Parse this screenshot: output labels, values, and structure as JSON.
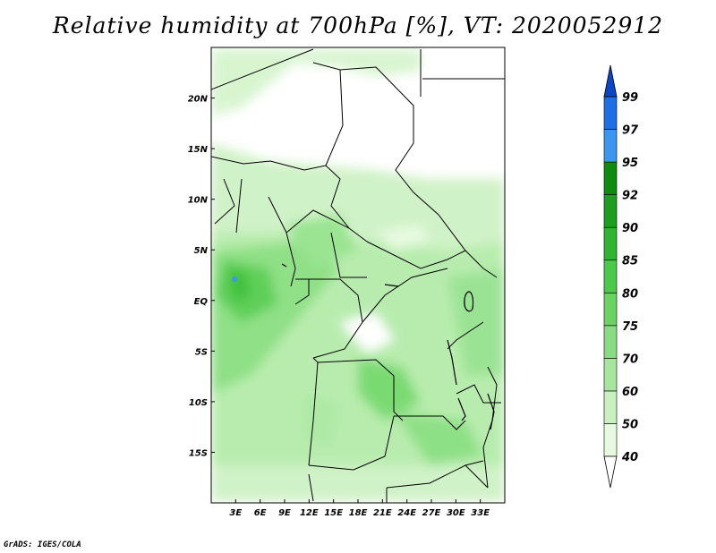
{
  "title": "Relative humidity at 700hPa [%], VT: 2020052912",
  "credit": "GrADS: IGES/COLA",
  "map": {
    "lon_range": [
      0,
      36
    ],
    "lat_range": [
      -20,
      25
    ],
    "lon_ticks": [
      "3E",
      "6E",
      "9E",
      "12E",
      "15E",
      "18E",
      "21E",
      "24E",
      "27E",
      "30E",
      "33E"
    ],
    "lat_ticks": [
      "20N",
      "15N",
      "10N",
      "5N",
      "EQ",
      "5S",
      "10S",
      "15S"
    ]
  },
  "colorbar": {
    "labels": [
      "40",
      "50",
      "60",
      "70",
      "75",
      "80",
      "85",
      "90",
      "92",
      "95",
      "97",
      "99"
    ],
    "colors": [
      "#ffffff",
      "#e6fae0",
      "#c8f0c0",
      "#a8e6a0",
      "#88dc82",
      "#6ad364",
      "#4cc84a",
      "#32b432",
      "#1e9e1e",
      "#0e8c0e",
      "#3c96f0",
      "#1e6ee6",
      "#0a46c8"
    ]
  }
}
